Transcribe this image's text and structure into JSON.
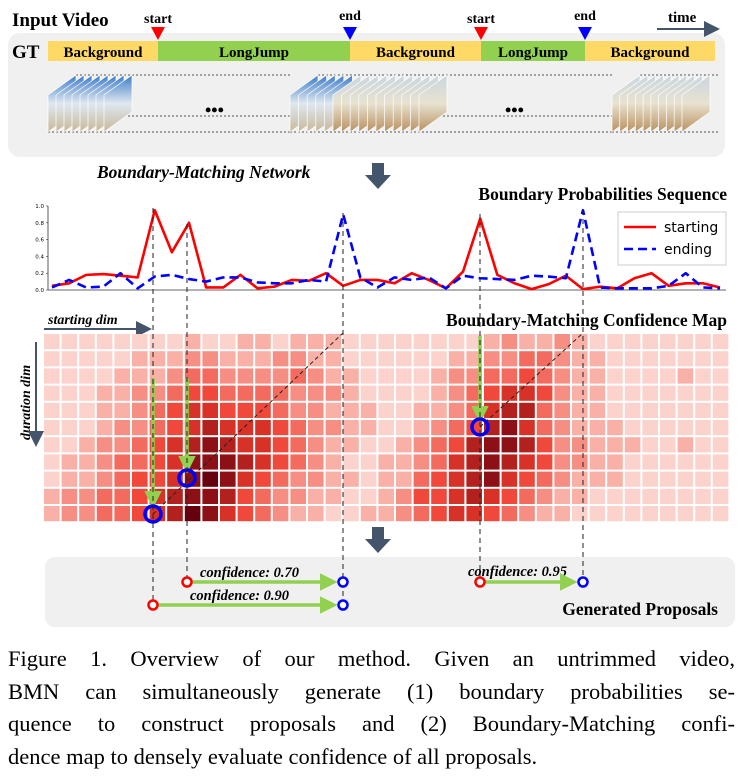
{
  "figure": {
    "input_video_label": "Input Video",
    "gt_label": "GT",
    "time_label": "time",
    "markers": [
      {
        "label": "start",
        "color": "#ff0000"
      },
      {
        "label": "end",
        "color": "#0000ff"
      },
      {
        "label": "start",
        "color": "#ff0000"
      },
      {
        "label": "end",
        "color": "#0000ff"
      }
    ],
    "segments": [
      {
        "label": "Background",
        "color": "#ffd966"
      },
      {
        "label": "LongJump",
        "color": "#92d050"
      },
      {
        "label": "Background",
        "color": "#ffd966"
      },
      {
        "label": "LongJump",
        "color": "#92d050"
      },
      {
        "label": "Background",
        "color": "#ffd966"
      }
    ],
    "ellipsis": "•••",
    "network_label": "Boundary-Matching Network",
    "prob_title": "Boundary Probabilities Sequence",
    "map_title": "Boundary-Matching Confidence Map",
    "starting_dim_label": "starting dim",
    "duration_dim_label": "duration dim",
    "proposals_title": "Generated Proposals",
    "proposals": [
      {
        "label": "confidence: 0.70"
      },
      {
        "label": "confidence: 0.90"
      },
      {
        "label": "confidence: 0.95"
      }
    ],
    "arrow_color": "#44546a",
    "green_arrow_color": "#92d050"
  },
  "chart_data": {
    "type": "line",
    "title": "Boundary Probabilities Sequence",
    "ylim": [
      0,
      1.0
    ],
    "yticks": [
      "0.0",
      "0.2",
      "0.4",
      "0.6",
      "0.8",
      "1.0"
    ],
    "legend_position": "top-right",
    "series": [
      {
        "name": "starting",
        "color": "#ff0000",
        "style": "solid",
        "values": [
          0.05,
          0.08,
          0.18,
          0.19,
          0.17,
          0.15,
          0.95,
          0.45,
          0.8,
          0.03,
          0.03,
          0.18,
          0.02,
          0.04,
          0.12,
          0.11,
          0.2,
          0.05,
          0.12,
          0.12,
          0.08,
          0.2,
          0.12,
          0.02,
          0.22,
          0.85,
          0.18,
          0.08,
          0.01,
          0.07,
          0.17,
          0.01,
          0.04,
          0.02,
          0.14,
          0.2,
          0.05,
          0.08,
          0.08,
          0.03
        ]
      },
      {
        "name": "ending",
        "color": "#0000ff",
        "style": "dashed",
        "values": [
          0.03,
          0.12,
          0.03,
          0.04,
          0.2,
          0.02,
          0.16,
          0.18,
          0.13,
          0.1,
          0.15,
          0.15,
          0.09,
          0.08,
          0.08,
          0.12,
          0.1,
          0.9,
          0.15,
          0.03,
          0.15,
          0.12,
          0.15,
          0.02,
          0.17,
          0.14,
          0.13,
          0.12,
          0.17,
          0.16,
          0.14,
          0.95,
          0.03,
          0.02,
          0.02,
          0.02,
          0.05,
          0.2,
          0.03,
          0.02
        ]
      }
    ]
  },
  "confidence_map": {
    "type": "heatmap",
    "colorscale": [
      "#fff5f0",
      "#67000d"
    ],
    "rows": [
      "111111112112212221111111123223211111111",
      "111112223322233221111112233443221111111",
      "111122234433334322111123344543221111211",
      "111223345544443332111123456653221111111",
      "111223456655543322211223467743221111111",
      "111233456766654332211234578643222111111",
      "112334567876654322112345788753322211211",
      "122344568887654321122346787653322111111",
      "122345568986543322122456786543222111111",
      "233445678875433221123556765432211111111",
      "233445679865432211223456654322111111111"
    ]
  },
  "caption": {
    "lines": [
      "Figure 1. Overview of our method.  Given an untrimmed video,",
      "BMN can simultaneously generate (1) boundary probabilities se-",
      "quence to construct proposals and (2) Boundary-Matching confi-",
      "dence map to densely evaluate confidence of all proposals."
    ]
  }
}
